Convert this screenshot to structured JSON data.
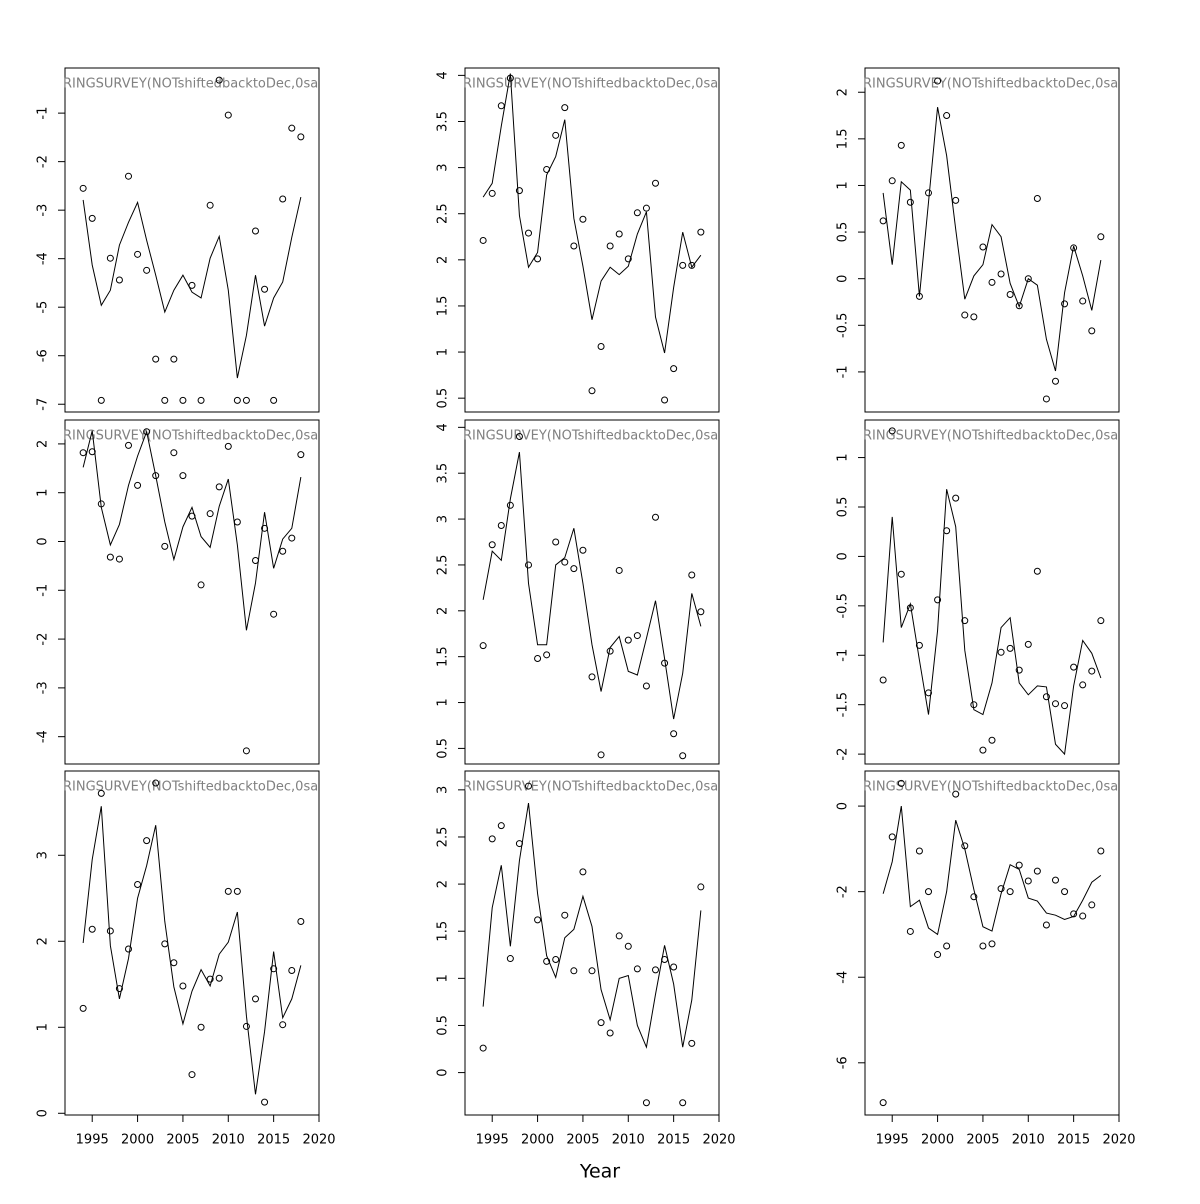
{
  "xlabel": "Year",
  "chart_data": [
    {
      "type": "line",
      "title": "RINGSURVEY(NOTshiftedbacktoDec,0sa",
      "x": [
        1994,
        1995,
        1996,
        1997,
        1998,
        1999,
        2000,
        2001,
        2002,
        2003,
        2004,
        2005,
        2006,
        2007,
        2008,
        2009,
        2010,
        2011,
        2012,
        2013,
        2014,
        2015,
        2016,
        2017,
        2018
      ],
      "xlim": [
        1992,
        2020
      ],
      "ylim": [
        -7.16,
        -0.07
      ],
      "yticks": [
        -7,
        -6,
        -5,
        -4,
        -3,
        -2,
        -1
      ],
      "series": [
        {
          "style": "points",
          "color": "#000000",
          "values": [
            -2.55,
            -3.17,
            -6.92,
            -3.99,
            -4.44,
            -2.3,
            -3.91,
            -4.24,
            -6.07,
            -6.92,
            -6.07,
            -6.92,
            -4.55,
            -6.92,
            -2.9,
            -0.32,
            -1.04,
            -6.92,
            -6.92,
            -3.43,
            -4.63,
            -6.92,
            -2.77,
            -1.31,
            -1.49
          ]
        },
        {
          "style": "line",
          "color": "#000000",
          "values": [
            -2.79,
            -4.13,
            -4.96,
            -4.65,
            -3.72,
            -3.25,
            -2.84,
            -3.62,
            -4.34,
            -5.1,
            -4.65,
            -4.34,
            -4.69,
            -4.81,
            -3.99,
            -3.54,
            -4.65,
            -6.46,
            -5.58,
            -4.34,
            -5.39,
            -4.81,
            -4.48,
            -3.56,
            -2.73
          ]
        }
      ]
    },
    {
      "type": "line",
      "title": "RINGSURVEY(NOTshiftedbacktoDec,0sa",
      "x": [
        1994,
        1995,
        1996,
        1997,
        1998,
        1999,
        2000,
        2001,
        2002,
        2003,
        2004,
        2005,
        2006,
        2007,
        2008,
        2009,
        2010,
        2011,
        2012,
        2013,
        2014,
        2015,
        2016,
        2017,
        2018
      ],
      "xlim": [
        1992,
        2020
      ],
      "ylim": [
        0.35,
        4.08
      ],
      "yticks": [
        0.5,
        1,
        1.5,
        2,
        2.5,
        3,
        3.5,
        4
      ],
      "series": [
        {
          "style": "points",
          "color": "#000000",
          "values": [
            2.21,
            2.72,
            3.67,
            3.97,
            2.75,
            2.29,
            2.01,
            2.98,
            3.35,
            3.65,
            2.15,
            2.44,
            0.58,
            1.06,
            2.15,
            2.28,
            2.01,
            2.51,
            2.56,
            2.83,
            0.48,
            0.82,
            1.94,
            1.94,
            2.3
          ]
        },
        {
          "style": "line",
          "color": "#000000",
          "values": [
            2.68,
            2.83,
            3.45,
            4.02,
            2.48,
            1.92,
            2.08,
            2.92,
            3.12,
            3.52,
            2.45,
            1.93,
            1.35,
            1.77,
            1.92,
            1.84,
            1.93,
            2.28,
            2.52,
            1.38,
            0.99,
            1.7,
            2.3,
            1.92,
            2.05
          ]
        }
      ]
    },
    {
      "type": "line",
      "title": "RINGSURVEY(NOTshiftedbacktoDec,0sa",
      "x": [
        1994,
        1995,
        1996,
        1997,
        1998,
        1999,
        2000,
        2001,
        2002,
        2003,
        2004,
        2005,
        2006,
        2007,
        2008,
        2009,
        2010,
        2011,
        2012,
        2013,
        2014,
        2015,
        2016,
        2017,
        2018
      ],
      "xlim": [
        1992,
        2020
      ],
      "ylim": [
        -1.43,
        2.26
      ],
      "yticks": [
        -1,
        -0.5,
        0,
        0.5,
        1,
        1.5,
        2
      ],
      "series": [
        {
          "style": "points",
          "color": "#000000",
          "values": [
            0.62,
            1.05,
            1.43,
            0.82,
            -0.19,
            0.92,
            2.12,
            1.75,
            0.84,
            -0.39,
            -0.41,
            0.34,
            -0.04,
            0.05,
            -0.17,
            -0.29,
            0,
            0.86,
            -1.29,
            -1.1,
            -0.27,
            0.33,
            -0.24,
            -0.56,
            0.45
          ]
        },
        {
          "style": "line",
          "color": "#000000",
          "values": [
            0.92,
            0.15,
            1.04,
            0.95,
            -0.19,
            0.82,
            1.84,
            1.32,
            0.53,
            -0.22,
            0.03,
            0.15,
            0.58,
            0.45,
            -0.05,
            -0.3,
            0,
            -0.07,
            -0.65,
            -0.99,
            -0.15,
            0.35,
            0.03,
            -0.34,
            0.2
          ]
        }
      ]
    },
    {
      "type": "line",
      "title": "RINGSURVEY(NOTshiftedbacktoDec,0sa",
      "x": [
        1994,
        1995,
        1996,
        1997,
        1998,
        1999,
        2000,
        2001,
        2002,
        2003,
        2004,
        2005,
        2006,
        2007,
        2008,
        2009,
        2010,
        2011,
        2012,
        2013,
        2014,
        2015,
        2016,
        2017,
        2018
      ],
      "xlim": [
        1992,
        2020
      ],
      "ylim": [
        -4.56,
        2.49
      ],
      "yticks": [
        -4,
        -3,
        -2,
        -1,
        0,
        1,
        2
      ],
      "series": [
        {
          "style": "points",
          "color": "#000000",
          "values": [
            1.82,
            1.84,
            0.77,
            -0.32,
            -0.36,
            1.97,
            1.15,
            2.25,
            1.35,
            -0.1,
            1.82,
            1.35,
            0.52,
            -0.89,
            0.57,
            1.12,
            1.95,
            0.4,
            -4.29,
            -0.39,
            0.27,
            -1.49,
            -0.2,
            0.07,
            1.78
          ]
        },
        {
          "style": "line",
          "color": "#000000",
          "values": [
            1.52,
            2.27,
            0.7,
            -0.07,
            0.35,
            1.15,
            1.75,
            2.25,
            1.35,
            0.4,
            -0.37,
            0.3,
            0.7,
            0.1,
            -0.12,
            0.72,
            1.28,
            -0.07,
            -1.82,
            -0.85,
            0.6,
            -0.55,
            0.05,
            0.27,
            1.32
          ]
        }
      ]
    },
    {
      "type": "line",
      "title": "RINGSURVEY(NOTshiftedbacktoDec,0sa",
      "x": [
        1994,
        1995,
        1996,
        1997,
        1998,
        1999,
        2000,
        2001,
        2002,
        2003,
        2004,
        2005,
        2006,
        2007,
        2008,
        2009,
        2010,
        2011,
        2012,
        2013,
        2014,
        2015,
        2016,
        2017,
        2018
      ],
      "xlim": [
        1992,
        2020
      ],
      "ylim": [
        0.33,
        4.08
      ],
      "yticks": [
        0.5,
        1,
        1.5,
        2,
        2.5,
        3,
        3.5,
        4
      ],
      "series": [
        {
          "style": "points",
          "color": "#000000",
          "values": [
            1.62,
            2.72,
            2.93,
            3.15,
            3.9,
            2.5,
            1.48,
            1.52,
            2.75,
            2.53,
            2.46,
            2.66,
            1.28,
            0.43,
            1.56,
            2.44,
            1.68,
            1.73,
            1.18,
            3.02,
            1.43,
            0.66,
            0.42,
            2.39,
            1.99
          ]
        },
        {
          "style": "line",
          "color": "#000000",
          "values": [
            2.12,
            2.65,
            2.55,
            3.22,
            3.73,
            2.3,
            1.63,
            1.63,
            2.5,
            2.58,
            2.9,
            2.3,
            1.63,
            1.12,
            1.6,
            1.72,
            1.34,
            1.3,
            1.7,
            2.11,
            1.48,
            0.82,
            1.32,
            2.19,
            1.83
          ]
        }
      ]
    },
    {
      "type": "line",
      "title": "RINGSURVEY(NOTshiftedbacktoDec,0sa",
      "x": [
        1994,
        1995,
        1996,
        1997,
        1998,
        1999,
        2000,
        2001,
        2002,
        2003,
        2004,
        2005,
        2006,
        2007,
        2008,
        2009,
        2010,
        2011,
        2012,
        2013,
        2014,
        2015,
        2016,
        2017,
        2018
      ],
      "xlim": [
        1992,
        2020
      ],
      "ylim": [
        -2.1,
        1.38
      ],
      "yticks": [
        -2,
        -1.5,
        -1,
        -0.5,
        0,
        0.5,
        1
      ],
      "series": [
        {
          "style": "points",
          "color": "#000000",
          "values": [
            -1.25,
            1.27,
            -0.18,
            -0.52,
            -0.9,
            -1.38,
            -0.44,
            0.26,
            0.59,
            -0.65,
            -1.5,
            -1.96,
            -1.86,
            -0.97,
            -0.93,
            -1.15,
            -0.89,
            -0.15,
            -1.42,
            -1.49,
            -1.51,
            -1.12,
            -1.3,
            -1.16,
            -0.65
          ]
        },
        {
          "style": "line",
          "color": "#000000",
          "values": [
            -0.87,
            0.4,
            -0.72,
            -0.48,
            -1.05,
            -1.6,
            -0.75,
            0.68,
            0.3,
            -0.95,
            -1.55,
            -1.6,
            -1.28,
            -0.72,
            -0.62,
            -1.28,
            -1.4,
            -1.31,
            -1.32,
            -1.9,
            -2,
            -1.31,
            -0.85,
            -0.98,
            -1.23
          ]
        }
      ]
    },
    {
      "type": "line",
      "title": "RINGSURVEY(NOTshiftedbacktoDec,0sa",
      "x": [
        1994,
        1995,
        1996,
        1997,
        1998,
        1999,
        2000,
        2001,
        2002,
        2003,
        2004,
        2005,
        2006,
        2007,
        2008,
        2009,
        2010,
        2011,
        2012,
        2013,
        2014,
        2015,
        2016,
        2017,
        2018
      ],
      "xlim": [
        1992,
        2020
      ],
      "xticks": [
        1995,
        2000,
        2005,
        2010,
        2015,
        2020
      ],
      "ylim": [
        -0.02,
        3.98
      ],
      "yticks": [
        0,
        1,
        2,
        3
      ],
      "series": [
        {
          "style": "points",
          "color": "#000000",
          "values": [
            1.22,
            2.14,
            3.72,
            2.12,
            1.45,
            1.91,
            2.66,
            3.17,
            3.84,
            1.97,
            1.75,
            1.48,
            0.45,
            1,
            1.56,
            1.57,
            2.58,
            2.58,
            1.01,
            1.33,
            0.13,
            1.68,
            1.03,
            1.66,
            2.23
          ]
        },
        {
          "style": "line",
          "color": "#000000",
          "values": [
            1.98,
            2.95,
            3.57,
            1.95,
            1.33,
            1.8,
            2.5,
            2.88,
            3.35,
            2.23,
            1.47,
            1.04,
            1.42,
            1.67,
            1.48,
            1.85,
            1.99,
            2.34,
            1.13,
            0.22,
            0.95,
            1.88,
            1.11,
            1.33,
            1.72
          ]
        }
      ]
    },
    {
      "type": "line",
      "title": "RINGSURVEY(NOTshiftedbacktoDec,0sa",
      "x": [
        1994,
        1995,
        1996,
        1997,
        1998,
        1999,
        2000,
        2001,
        2002,
        2003,
        2004,
        2005,
        2006,
        2007,
        2008,
        2009,
        2010,
        2011,
        2012,
        2013,
        2014,
        2015,
        2016,
        2017,
        2018
      ],
      "xlim": [
        1992,
        2020
      ],
      "xticks": [
        1995,
        2000,
        2005,
        2010,
        2015,
        2020
      ],
      "ylim": [
        -0.45,
        3.2
      ],
      "yticks": [
        0,
        0.5,
        1,
        1.5,
        2,
        2.5,
        3
      ],
      "series": [
        {
          "style": "points",
          "color": "#000000",
          "values": [
            0.26,
            2.48,
            2.62,
            1.21,
            2.43,
            3.04,
            1.62,
            1.18,
            1.2,
            1.67,
            1.08,
            2.13,
            1.08,
            0.53,
            0.42,
            1.45,
            1.34,
            1.1,
            -0.32,
            1.09,
            1.2,
            1.12,
            -0.32,
            0.31,
            1.97
          ]
        },
        {
          "style": "line",
          "color": "#000000",
          "values": [
            0.7,
            1.75,
            2.2,
            1.34,
            2.25,
            2.86,
            1.9,
            1.24,
            1.01,
            1.43,
            1.52,
            1.87,
            1.55,
            0.88,
            0.56,
            1,
            1.03,
            0.5,
            0.27,
            0.83,
            1.35,
            0.94,
            0.27,
            0.77,
            1.72
          ]
        }
      ]
    },
    {
      "type": "line",
      "title": "RINGSURVEY(NOTshiftedbacktoDec,0sa",
      "x": [
        1994,
        1995,
        1996,
        1997,
        1998,
        1999,
        2000,
        2001,
        2002,
        2003,
        2004,
        2005,
        2006,
        2007,
        2008,
        2009,
        2010,
        2011,
        2012,
        2013,
        2014,
        2015,
        2016,
        2017,
        2018
      ],
      "xlim": [
        1992,
        2020
      ],
      "xticks": [
        1995,
        2000,
        2005,
        2010,
        2015,
        2020
      ],
      "ylim": [
        -7.22,
        0.82
      ],
      "yticks": [
        -6,
        -4,
        -2,
        0
      ],
      "series": [
        {
          "style": "points",
          "color": "#000000",
          "values": [
            -6.93,
            -0.72,
            0.53,
            -2.93,
            -1.05,
            -2,
            -3.47,
            -3.27,
            0.28,
            -0.93,
            -2.12,
            -3.27,
            -3.22,
            -1.93,
            -2,
            -1.38,
            -1.75,
            -1.52,
            -2.78,
            -1.73,
            -2,
            -2.52,
            -2.57,
            -2.31,
            -1.05
          ]
        },
        {
          "style": "line",
          "color": "#000000",
          "values": [
            -2.05,
            -1.3,
            0,
            -2.35,
            -2.2,
            -2.85,
            -3,
            -2,
            -0.33,
            -1,
            -1.95,
            -2.82,
            -2.92,
            -2.05,
            -1.37,
            -1.48,
            -2.15,
            -2.22,
            -2.5,
            -2.55,
            -2.65,
            -2.58,
            -2.2,
            -1.78,
            -1.62
          ]
        }
      ]
    }
  ]
}
